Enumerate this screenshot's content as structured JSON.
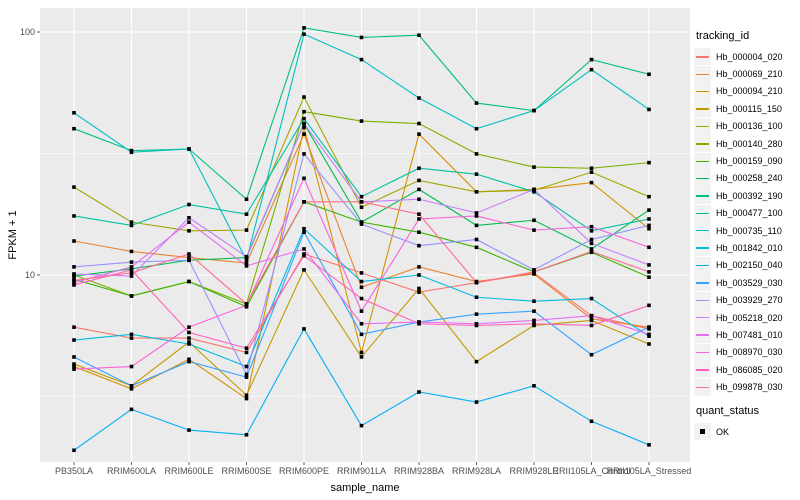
{
  "chart_data": {
    "type": "line",
    "title": "",
    "xlabel": "sample_name",
    "ylabel": "FPKM + 1",
    "yscale": "log10",
    "ylim": [
      1.7,
      120
    ],
    "yticks": [
      10,
      100
    ],
    "ytick_labels": [
      "10",
      "100"
    ],
    "grid": true,
    "legend_position": "right",
    "categories": [
      "PB350LA",
      "RRIM600LA",
      "RRIM600LE",
      "RRIM600SE",
      "RRIM600PE",
      "RRIM901LA",
      "RRIM928BA",
      "RRIM928LA",
      "RRIM928LE",
      "RRII105LA_Control",
      "RRII105LA_Stressed"
    ],
    "color_legend_title": "tracking_id",
    "shape_legend_title": "quant_status",
    "shape_legend_items": [
      "OK"
    ],
    "series": [
      {
        "name": "Hb_000004_020",
        "color": "#F8766D",
        "values": [
          6.1,
          5.5,
          5.5,
          4.8,
          12.2,
          10.2,
          8.5,
          9.3,
          10.2,
          6.8,
          6.0
        ]
      },
      {
        "name": "Hb_000069_210",
        "color": "#EA8331",
        "values": [
          13.8,
          12.5,
          11.8,
          11.2,
          38.0,
          8.9,
          10.8,
          9.4,
          10.1,
          6.6,
          6.1
        ]
      },
      {
        "name": "Hb_000094_210",
        "color": "#D89000",
        "values": [
          4.2,
          3.4,
          4.5,
          3.1,
          40.5,
          4.8,
          38.0,
          22.0,
          22.5,
          24.0,
          15.5
        ]
      },
      {
        "name": "Hb_000115_150",
        "color": "#C09B00",
        "values": [
          4.3,
          3.5,
          5.3,
          3.2,
          10.5,
          4.6,
          8.8,
          4.4,
          6.2,
          6.5,
          5.2
        ]
      },
      {
        "name": "Hb_000136_100",
        "color": "#A3A500",
        "values": [
          23.0,
          16.5,
          15.2,
          15.3,
          54.0,
          19.0,
          24.5,
          22.0,
          22.3,
          26.5,
          21.0
        ]
      },
      {
        "name": "Hb_000140_280",
        "color": "#7CAE00",
        "values": [
          10.0,
          8.2,
          9.4,
          7.6,
          47.0,
          43.0,
          42.0,
          31.5,
          27.8,
          27.5,
          29.0
        ]
      },
      {
        "name": "Hb_000159_090",
        "color": "#39B600",
        "values": [
          9.6,
          8.2,
          9.4,
          7.4,
          20.0,
          16.5,
          15.0,
          13.0,
          10.3,
          12.4,
          9.8
        ]
      },
      {
        "name": "Hb_000258_240",
        "color": "#00BB4E",
        "values": [
          9.9,
          10.6,
          11.5,
          11.8,
          42.0,
          16.5,
          22.5,
          16.0,
          16.8,
          12.8,
          18.5
        ]
      },
      {
        "name": "Hb_000392_190",
        "color": "#00BF7D",
        "values": [
          40.0,
          32.5,
          33.0,
          20.5,
          104.0,
          95.0,
          97.0,
          51.0,
          47.5,
          77.0,
          67.0
        ]
      },
      {
        "name": "Hb_000477_100",
        "color": "#00C1A3",
        "values": [
          17.5,
          16.0,
          19.5,
          17.8,
          44.0,
          21.0,
          27.5,
          26.0,
          22.0,
          15.2,
          17.0
        ]
      },
      {
        "name": "Hb_000735_110",
        "color": "#00BFC4",
        "values": [
          46.5,
          32.0,
          33.0,
          11.5,
          98.0,
          77.0,
          53.5,
          40.0,
          47.5,
          70.0,
          48.0
        ]
      },
      {
        "name": "Hb_001842_010",
        "color": "#00BAE0",
        "values": [
          5.4,
          5.7,
          5.2,
          4.2,
          15.5,
          9.4,
          10.0,
          8.1,
          7.8,
          8.0,
          5.6
        ]
      },
      {
        "name": "Hb_002150_040",
        "color": "#00B0F6",
        "values": [
          1.9,
          2.8,
          2.3,
          2.2,
          6.0,
          2.4,
          3.3,
          3.0,
          3.5,
          2.5,
          2.0
        ]
      },
      {
        "name": "Hb_003529_030",
        "color": "#35A2FF",
        "values": [
          4.6,
          3.5,
          4.4,
          3.8,
          15.0,
          5.7,
          6.4,
          6.9,
          7.1,
          4.7,
          6.1
        ]
      },
      {
        "name": "Hb_003929_270",
        "color": "#9590FF",
        "values": [
          10.8,
          11.3,
          11.5,
          3.9,
          31.5,
          16.2,
          13.2,
          14.0,
          10.5,
          14.0,
          16.0
        ]
      },
      {
        "name": "Hb_005218_020",
        "color": "#C77CFF",
        "values": [
          10.1,
          9.9,
          17.2,
          11.9,
          42.0,
          20.0,
          20.5,
          18.0,
          22.5,
          13.5,
          11.0
        ]
      },
      {
        "name": "Hb_007481_010",
        "color": "#E76BF3",
        "values": [
          9.3,
          10.8,
          16.5,
          10.9,
          12.8,
          6.3,
          6.4,
          6.3,
          6.5,
          6.8,
          5.7
        ]
      },
      {
        "name": "Hb_008970_030",
        "color": "#FA62DB",
        "values": [
          4.1,
          4.2,
          6.1,
          7.5,
          25.0,
          7.1,
          17.0,
          17.5,
          15.3,
          15.8,
          13.0
        ]
      },
      {
        "name": "Hb_086085_020",
        "color": "#FF62BC",
        "values": [
          9.1,
          10.5,
          5.8,
          5.0,
          12.0,
          8.0,
          6.3,
          6.2,
          6.3,
          6.2,
          7.5
        ]
      },
      {
        "name": "Hb_099878_030",
        "color": "#FF6C91",
        "values": [
          9.5,
          10.2,
          12.2,
          7.6,
          20.0,
          20.0,
          17.8,
          9.3,
          10.3,
          12.5,
          10.3
        ]
      }
    ]
  }
}
